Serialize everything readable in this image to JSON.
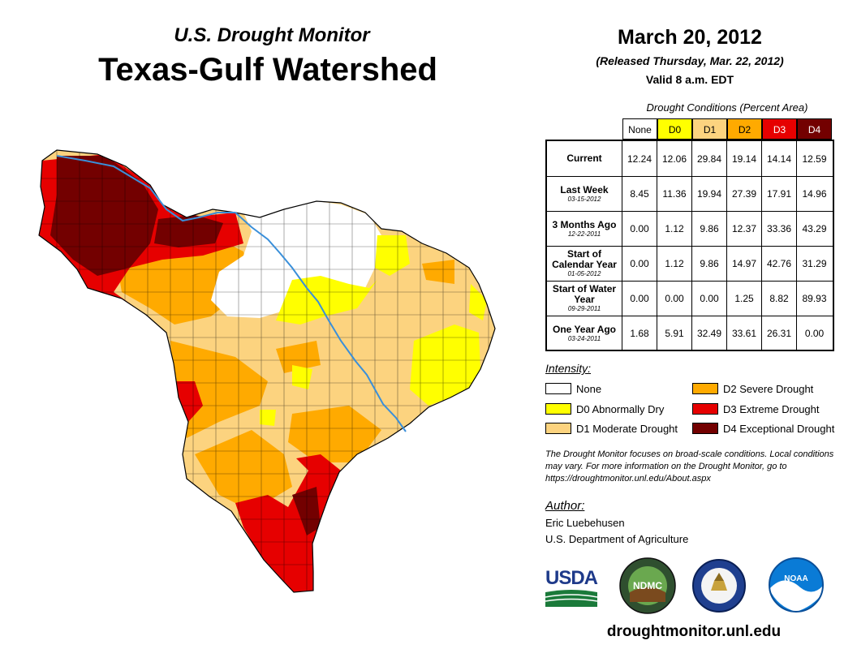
{
  "header": {
    "subtitle": "U.S. Drought Monitor",
    "title": "Texas-Gulf Watershed",
    "date": "March 20, 2012",
    "released": "(Released Thursday, Mar. 22, 2012)",
    "valid": "Valid 8 a.m. EDT"
  },
  "table": {
    "caption": "Drought Conditions (Percent Area)",
    "columns": [
      {
        "label": "None",
        "color": "#ffffff",
        "text_color": "#000000"
      },
      {
        "label": "D0",
        "color": "#ffff00",
        "text_color": "#000000"
      },
      {
        "label": "D1",
        "color": "#fcd37f",
        "text_color": "#000000"
      },
      {
        "label": "D2",
        "color": "#ffaa00",
        "text_color": "#000000"
      },
      {
        "label": "D3",
        "color": "#e60000",
        "text_color": "#ffffff"
      },
      {
        "label": "D4",
        "color": "#730000",
        "text_color": "#ffffff"
      }
    ],
    "rows": [
      {
        "label": "Current",
        "sublabel": "",
        "values": [
          "12.24",
          "12.06",
          "29.84",
          "19.14",
          "14.14",
          "12.59"
        ]
      },
      {
        "label": "Last Week",
        "sublabel": "03-15-2012",
        "values": [
          "8.45",
          "11.36",
          "19.94",
          "27.39",
          "17.91",
          "14.96"
        ]
      },
      {
        "label": "3 Months Ago",
        "sublabel": "12-22-2011",
        "values": [
          "0.00",
          "1.12",
          "9.86",
          "12.37",
          "33.36",
          "43.29"
        ]
      },
      {
        "label": "Start of Calendar Year",
        "sublabel": "01-05-2012",
        "values": [
          "0.00",
          "1.12",
          "9.86",
          "14.97",
          "42.76",
          "31.29"
        ]
      },
      {
        "label": "Start of Water Year",
        "sublabel": "09-29-2011",
        "values": [
          "0.00",
          "0.00",
          "0.00",
          "1.25",
          "8.82",
          "89.93"
        ]
      },
      {
        "label": "One Year Ago",
        "sublabel": "03-24-2011",
        "values": [
          "1.68",
          "5.91",
          "32.49",
          "33.61",
          "26.31",
          "0.00"
        ]
      }
    ]
  },
  "legend": {
    "title": "Intensity:",
    "items": [
      {
        "label": "None",
        "color": "#ffffff"
      },
      {
        "label": "D0 Abnormally Dry",
        "color": "#ffff00"
      },
      {
        "label": "D1 Moderate Drought",
        "color": "#fcd37f"
      },
      {
        "label": "D2 Severe Drought",
        "color": "#ffaa00"
      },
      {
        "label": "D3 Extreme Drought",
        "color": "#e60000"
      },
      {
        "label": "D4 Exceptional Drought",
        "color": "#730000"
      }
    ]
  },
  "note": "The Drought Monitor focuses on broad-scale conditions. Local conditions may vary. For more information on the Drought Monitor, go to https://droughtmonitor.unl.edu/About.aspx",
  "author": {
    "title": "Author:",
    "name": "Eric Luebehusen",
    "org": "U.S. Department of Agriculture"
  },
  "logos": {
    "usda": "USDA",
    "ndmc": "NDMC",
    "noaa": "NOAA"
  },
  "website": "droughtmonitor.unl.edu",
  "map": {
    "river_color": "#3a8fd9"
  }
}
